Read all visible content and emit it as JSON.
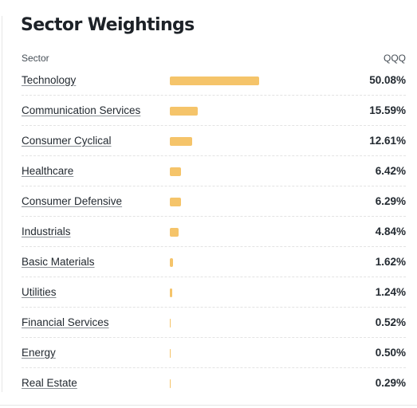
{
  "title": "Sector Weightings",
  "columns": {
    "sector": "Sector",
    "fund": "QQQ"
  },
  "colors": {
    "bar": "#f5c46a",
    "text": "#232a31"
  },
  "sectors": [
    {
      "name": "Technology",
      "percent_label": "50.08%",
      "value": 50.08
    },
    {
      "name": "Communication Services",
      "percent_label": "15.59%",
      "value": 15.59
    },
    {
      "name": "Consumer Cyclical",
      "percent_label": "12.61%",
      "value": 12.61
    },
    {
      "name": "Healthcare",
      "percent_label": "6.42%",
      "value": 6.42
    },
    {
      "name": "Consumer Defensive",
      "percent_label": "6.29%",
      "value": 6.29
    },
    {
      "name": "Industrials",
      "percent_label": "4.84%",
      "value": 4.84
    },
    {
      "name": "Basic Materials",
      "percent_label": "1.62%",
      "value": 1.62
    },
    {
      "name": "Utilities",
      "percent_label": "1.24%",
      "value": 1.24
    },
    {
      "name": "Financial Services",
      "percent_label": "0.52%",
      "value": 0.52
    },
    {
      "name": "Energy",
      "percent_label": "0.50%",
      "value": 0.5
    },
    {
      "name": "Real Estate",
      "percent_label": "0.29%",
      "value": 0.29
    }
  ]
}
